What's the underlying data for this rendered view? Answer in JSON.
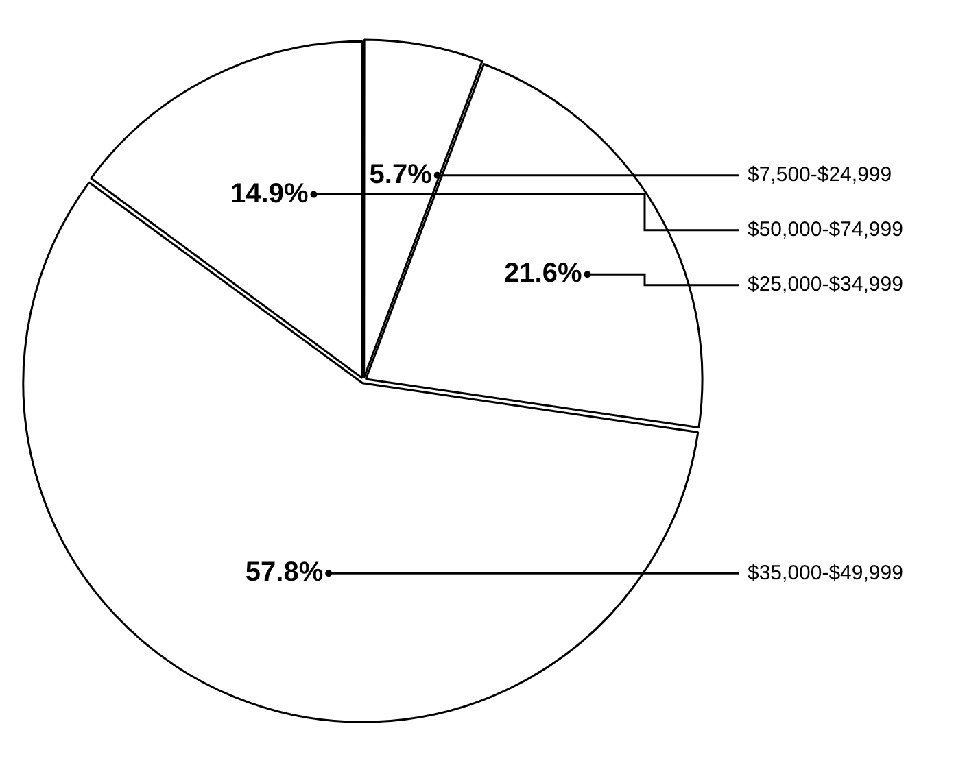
{
  "chart_data": {
    "type": "pie",
    "categories": [
      "$7,500-$24,999",
      "$25,000-$34,999",
      "$35,000-$49,999",
      "$50,000-$74,999"
    ],
    "values": [
      5.7,
      21.6,
      57.8,
      14.9
    ],
    "colors": [
      "#ffffff",
      "#ffffff",
      "#ffffff",
      "#ffffff"
    ],
    "value_labels": [
      "5.7%",
      "21.6%",
      "57.8%",
      "14.9%"
    ],
    "legend": false
  }
}
